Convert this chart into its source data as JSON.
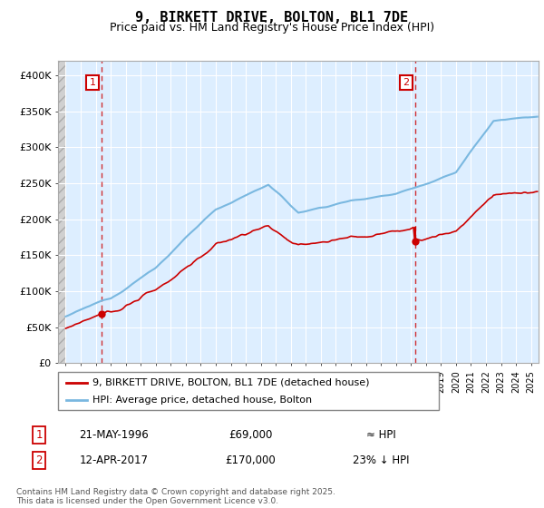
{
  "title": "9, BIRKETT DRIVE, BOLTON, BL1 7DE",
  "subtitle": "Price paid vs. HM Land Registry's House Price Index (HPI)",
  "legend_line1": "9, BIRKETT DRIVE, BOLTON, BL1 7DE (detached house)",
  "legend_line2": "HPI: Average price, detached house, Bolton",
  "annotation1_date": "21-MAY-1996",
  "annotation1_price": "£69,000",
  "annotation1_hpi": "≈ HPI",
  "annotation2_date": "12-APR-2017",
  "annotation2_price": "£170,000",
  "annotation2_hpi": "23% ↓ HPI",
  "footer": "Contains HM Land Registry data © Crown copyright and database right 2025.\nThis data is licensed under the Open Government Licence v3.0.",
  "sale1_year": 1996.39,
  "sale1_price": 69000,
  "sale2_year": 2017.28,
  "sale2_price": 170000,
  "hpi_line_color": "#7ab8e0",
  "price_line_color": "#cc0000",
  "dashed_line_color": "#cc0000",
  "background_plot": "#ddeeff",
  "grid_color": "#ffffff",
  "ylim_max": 420000,
  "ylim_min": 0,
  "xmin": 1993.5,
  "xmax": 2025.5
}
